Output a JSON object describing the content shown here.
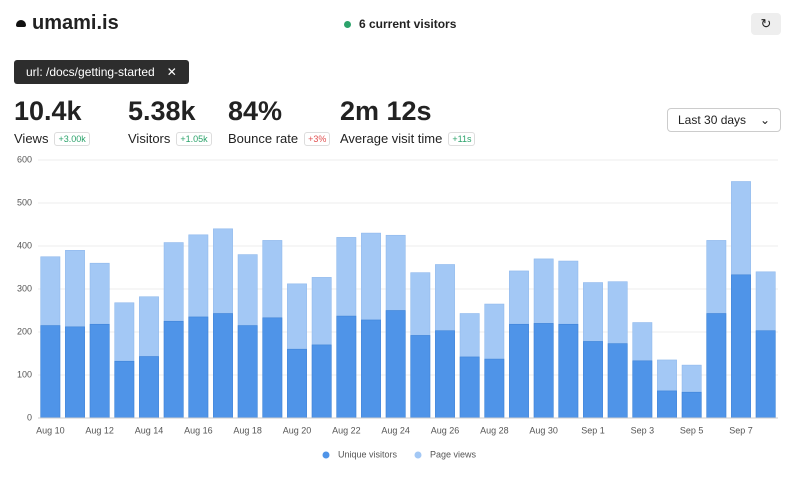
{
  "header": {
    "logo": "umami.is",
    "live": "6 current visitors"
  },
  "filter": {
    "label": "url: /docs/getting-started"
  },
  "metrics": [
    {
      "value": "10.4k",
      "label": "Views",
      "change": "+3.00k"
    },
    {
      "value": "5.38k",
      "label": "Visitors",
      "change": "+1.05k"
    },
    {
      "value": "84%",
      "label": "Bounce rate",
      "change": "+3%"
    },
    {
      "value": "2m 12s",
      "label": "Average visit time",
      "change": "+11s"
    }
  ],
  "date_range": "Last 30 days",
  "chart_data": {
    "type": "bar",
    "categories": [
      "Aug 10",
      null,
      "Aug 12",
      null,
      "Aug 14",
      null,
      "Aug 16",
      null,
      "Aug 18",
      null,
      "Aug 20",
      null,
      "Aug 22",
      null,
      "Aug 24",
      null,
      "Aug 26",
      null,
      "Aug 28",
      null,
      "Aug 30",
      null,
      "Sep 1",
      null,
      "Sep 3",
      null,
      "Sep 5",
      null,
      "Sep 7",
      null
    ],
    "series": [
      {
        "name": "Unique visitors",
        "color": "#4f94e8",
        "values": [
          215,
          212,
          218,
          132,
          143,
          225,
          235,
          243,
          215,
          233,
          160,
          170,
          237,
          228,
          250,
          192,
          203,
          142,
          137,
          218,
          220,
          218,
          178,
          173,
          133,
          63,
          60,
          243,
          333,
          203
        ]
      },
      {
        "name": "Page views",
        "color": "#a3c8f5",
        "values": [
          375,
          390,
          360,
          268,
          282,
          408,
          426,
          440,
          380,
          413,
          312,
          327,
          420,
          430,
          425,
          338,
          357,
          243,
          265,
          342,
          370,
          365,
          315,
          317,
          222,
          135,
          123,
          413,
          550,
          340
        ]
      }
    ],
    "ylim": [
      0,
      600
    ],
    "yticks": [
      0,
      100,
      200,
      300,
      400,
      500,
      600
    ],
    "grid": true,
    "legend": "bottom"
  }
}
